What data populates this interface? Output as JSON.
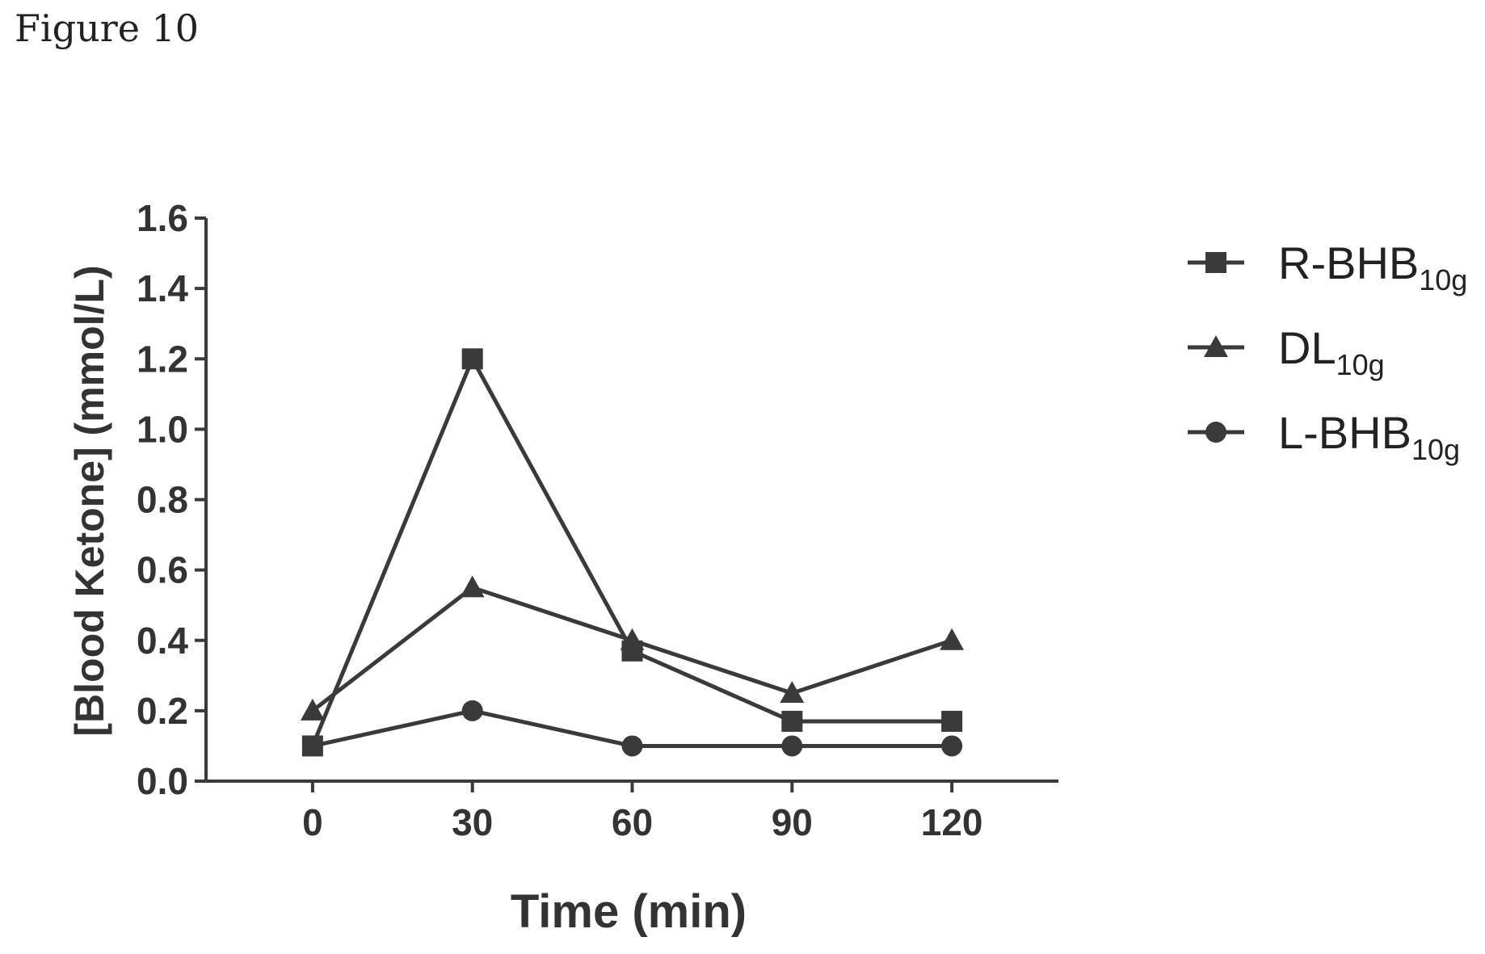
{
  "figure_label": "Figure 10",
  "chart_data": {
    "type": "line",
    "xlabel": "Time (min)",
    "ylabel": "[Blood Ketone] (mmol/L)",
    "x": [
      0,
      30,
      60,
      90,
      120
    ],
    "xticks": [
      "0",
      "30",
      "60",
      "90",
      "120"
    ],
    "xlim": [
      -20,
      140
    ],
    "ylim": [
      0,
      1.6
    ],
    "yticks": [
      "0.0",
      "0.2",
      "0.4",
      "0.6",
      "0.8",
      "1.0",
      "1.2",
      "1.4",
      "1.6"
    ],
    "grid": false,
    "legend_position": "right",
    "series": [
      {
        "name": "R-BHB",
        "subscript": "10g",
        "marker": "square",
        "values": [
          0.1,
          1.2,
          0.37,
          0.17,
          0.17
        ]
      },
      {
        "name": "DL",
        "subscript": "10g",
        "marker": "triangle",
        "values": [
          0.2,
          0.55,
          0.4,
          0.25,
          0.4
        ]
      },
      {
        "name": "L-BHB",
        "subscript": "10g",
        "marker": "circle",
        "values": [
          0.1,
          0.2,
          0.1,
          0.1,
          0.1
        ]
      }
    ],
    "line_color": "#3a3a3a"
  }
}
